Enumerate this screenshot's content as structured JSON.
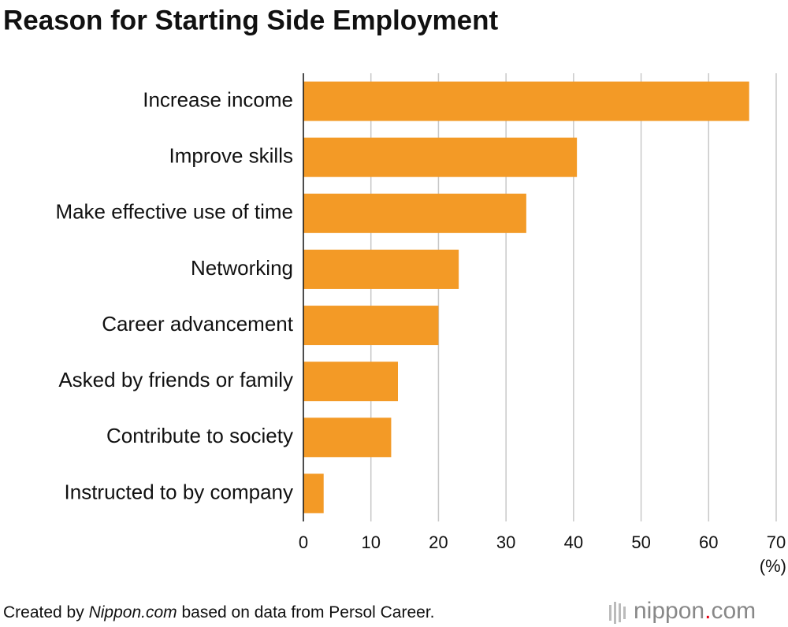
{
  "chart_data": {
    "type": "bar",
    "orientation": "horizontal",
    "title": "Reason for Starting Side Employment",
    "categories": [
      "Increase income",
      "Improve skills",
      "Make effective use of time",
      "Networking",
      "Career advancement",
      "Asked by friends or family",
      "Contribute to society",
      "Instructed to by company"
    ],
    "values": [
      66,
      40.5,
      33,
      23,
      20,
      14,
      13,
      3
    ],
    "color": "#f39a26",
    "xlim": [
      0,
      70
    ],
    "xticks": [
      0,
      10,
      20,
      30,
      40,
      50,
      60,
      70
    ],
    "x_unit": "(%)",
    "grid": true,
    "source": {
      "prefix": "Created by",
      "name": "Nippon.com",
      "suffix": "based on data from Persol Career."
    },
    "logo": {
      "main": "nippon",
      "dot": ".",
      "end": "com"
    }
  }
}
